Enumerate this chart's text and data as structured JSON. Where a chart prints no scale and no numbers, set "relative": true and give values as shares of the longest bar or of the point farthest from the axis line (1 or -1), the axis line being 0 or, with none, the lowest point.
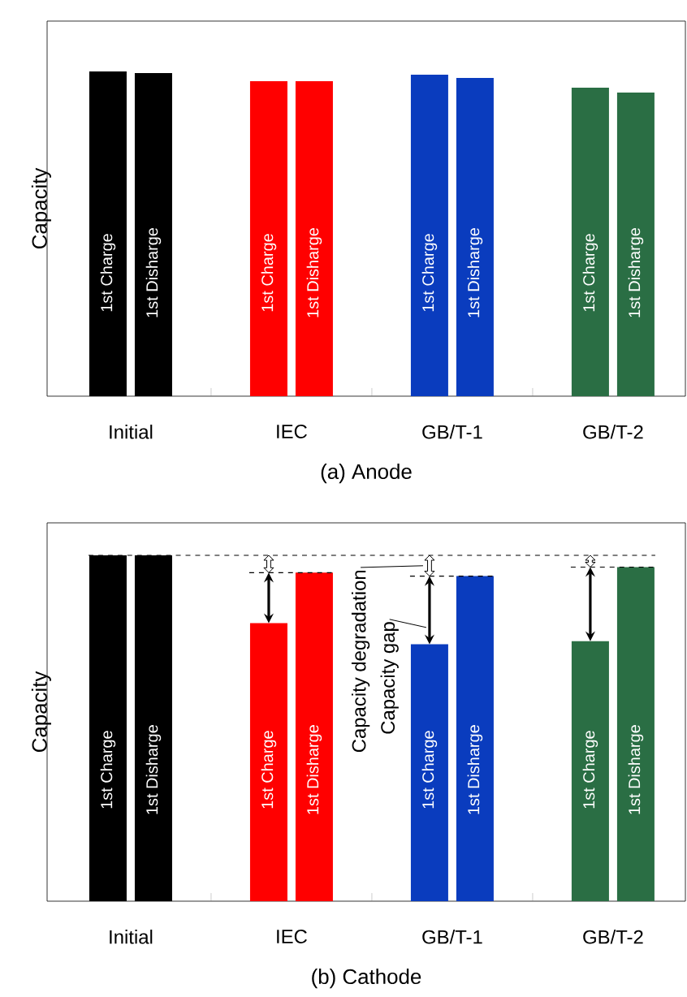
{
  "chart_data": [
    {
      "type": "bar",
      "title": "(a) Anode",
      "ylabel": "Capacity",
      "relative": true,
      "categories": [
        "Initial",
        "IEC",
        "GB/T-1",
        "GB/T-2"
      ],
      "series": [
        {
          "name": "1st Charge",
          "colors": [
            "#000000",
            "#ff0000",
            "#0a3cbe",
            "#2a6e44"
          ],
          "values": [
            1,
            0.97,
            0.99,
            0.95
          ]
        },
        {
          "name": "1st Disharge",
          "colors": [
            "#000000",
            "#ff0000",
            "#0a3cbe",
            "#2a6e44"
          ],
          "values": [
            0.995,
            0.97,
            0.98,
            0.935
          ]
        }
      ]
    },
    {
      "type": "bar",
      "title": "(b) Cathode",
      "ylabel": "Capacity",
      "relative": true,
      "categories": [
        "Initial",
        "IEC",
        "GB/T-1",
        "GB/T-2"
      ],
      "series": [
        {
          "name": "1st Charge",
          "colors": [
            "#000000",
            "#ff0000",
            "#0a3cbe",
            "#2a6e44"
          ],
          "values": [
            1,
            0.804,
            0.743,
            0.752
          ]
        },
        {
          "name": "1st Disharge",
          "colors": [
            "#000000",
            "#ff0000",
            "#0a3cbe",
            "#2a6e44"
          ],
          "values": [
            1,
            0.95,
            0.94,
            0.966
          ]
        }
      ],
      "ref_lines": [
        {
          "axis": "y",
          "value": 1,
          "line_style": "dashed"
        }
      ],
      "annotations": [
        "Capacity degradation",
        "Capacity gap"
      ]
    }
  ]
}
